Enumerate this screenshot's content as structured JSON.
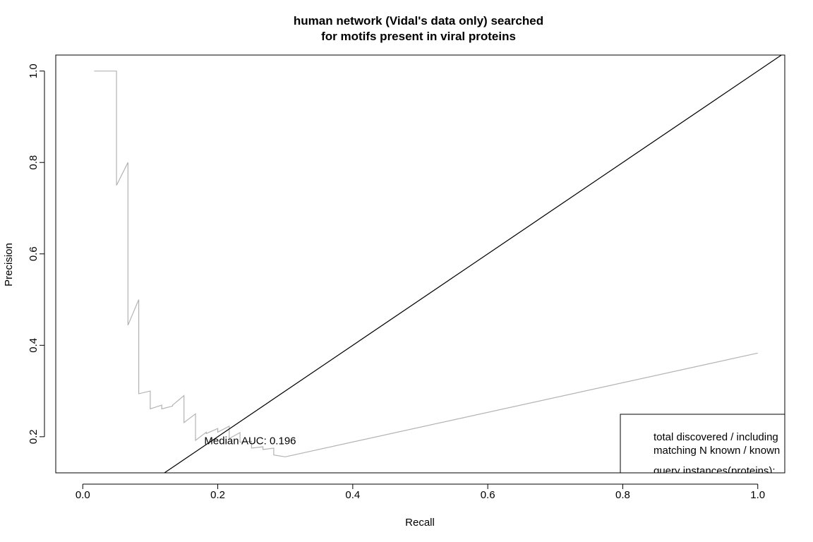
{
  "chart_data": {
    "type": "line",
    "title_line1": "human network (Vidal's data only) searched",
    "title_line2": "for motifs present in viral proteins",
    "xlabel": "Recall",
    "ylabel": "Precision",
    "xlim": [
      -0.04,
      1.04
    ],
    "ylim": [
      0.121,
      1.035
    ],
    "x_ticks": [
      0.0,
      0.2,
      0.4,
      0.6,
      0.8,
      1.0
    ],
    "x_tick_labels": [
      "0.0",
      "0.2",
      "0.4",
      "0.6",
      "0.8",
      "1.0"
    ],
    "y_ticks": [
      0.2,
      0.4,
      0.6,
      0.8,
      1.0
    ],
    "y_tick_labels": [
      "0.2",
      "0.4",
      "0.6",
      "0.8",
      "1.0"
    ],
    "grid": false,
    "series": [
      {
        "color": "#b3b3b3",
        "x": [
          0.017,
          0.05,
          0.05,
          0.067,
          0.067,
          0.083,
          0.083,
          0.1,
          0.1,
          0.117,
          0.117,
          0.133,
          0.133,
          0.15,
          0.15,
          0.167,
          0.167,
          0.183,
          0.183,
          0.2,
          0.2,
          0.217,
          0.217,
          0.233,
          0.233,
          0.25,
          0.25,
          0.267,
          0.267,
          0.283,
          0.283,
          0.3,
          1.0
        ],
        "y": [
          1.0,
          1.0,
          0.75,
          0.8,
          0.444,
          0.5,
          0.294,
          0.3,
          0.261,
          0.269,
          0.261,
          0.267,
          0.269,
          0.29,
          0.231,
          0.25,
          0.192,
          0.21,
          0.207,
          0.218,
          0.21,
          0.223,
          0.196,
          0.209,
          0.188,
          0.19,
          0.175,
          0.178,
          0.172,
          0.175,
          0.16,
          0.156,
          0.383
        ]
      }
    ],
    "reference_line": {
      "color": "#000000",
      "intercept": 0.0,
      "slope": 1.0
    },
    "annotation": {
      "text": "Median AUC: 0.196",
      "x": 0.18,
      "y": 0.19
    },
    "legend": {
      "placement": "bottom-right",
      "lines": [
        "total discovered / including",
        "matching N known / known",
        "query instances(proteins):"
      ]
    }
  }
}
